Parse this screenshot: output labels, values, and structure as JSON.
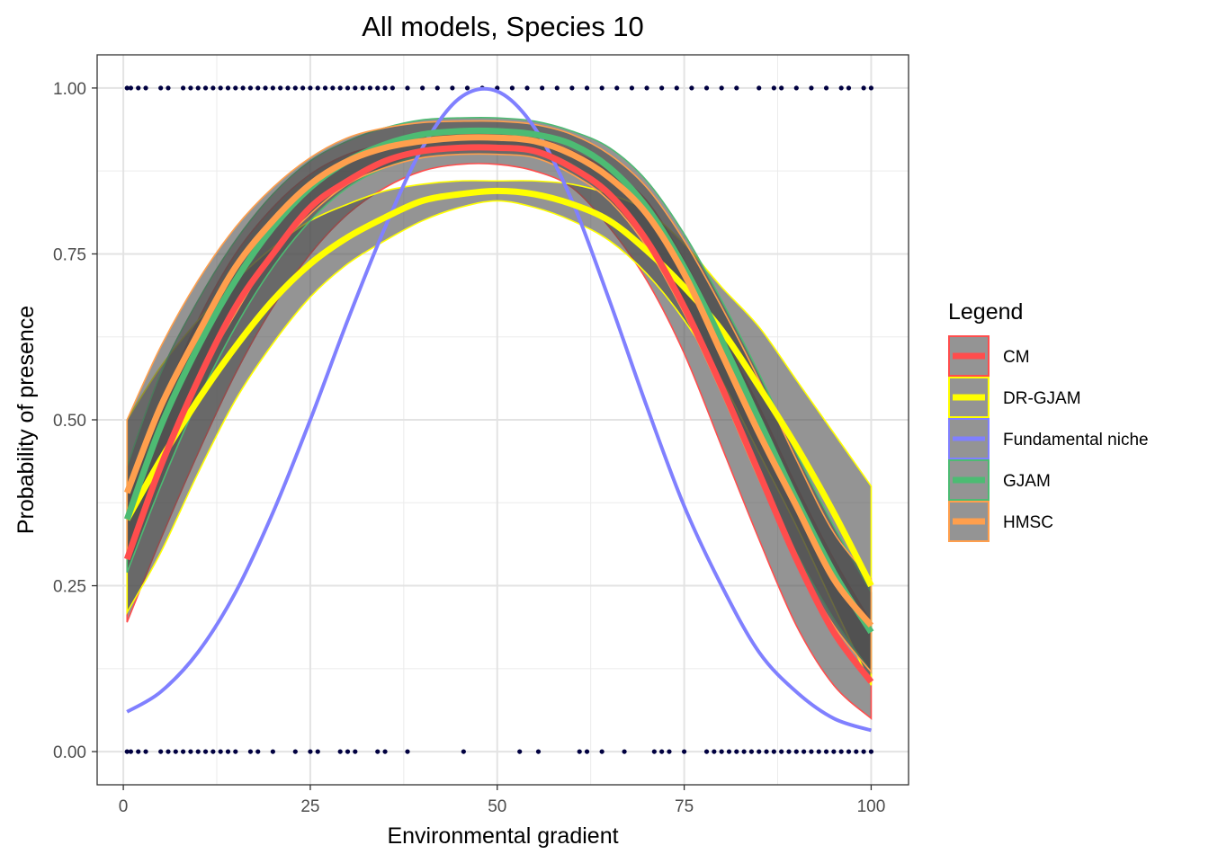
{
  "chart_data": {
    "type": "line",
    "title": "All models, Species 10",
    "xlabel": "Environmental gradient",
    "ylabel": "Probability of presence",
    "xlim": [
      -3.5,
      105
    ],
    "ylim": [
      -0.05,
      1.05
    ],
    "x_ticks": [
      0,
      25,
      50,
      75,
      100
    ],
    "x_tick_labels": [
      "0",
      "25",
      "50",
      "75",
      "100"
    ],
    "y_ticks": [
      0,
      0.25,
      0.5,
      0.75,
      1.0
    ],
    "y_tick_labels": [
      "0.00",
      "0.25",
      "0.50",
      "0.75",
      "1.00"
    ],
    "grid": true,
    "legend": {
      "title": "Legend",
      "position": "right",
      "items": [
        "CM",
        "DR-GJAM",
        "Fundamental niche",
        "GJAM",
        "HMSC"
      ]
    },
    "ribbon_color": "#4d4d4d",
    "x": [
      0.5,
      5,
      10,
      15,
      20,
      25,
      30,
      35,
      40,
      45,
      50,
      55,
      60,
      65,
      70,
      75,
      80,
      85,
      90,
      95,
      100
    ],
    "series": [
      {
        "name": "CM",
        "color": "#ff4d4d",
        "values": [
          0.29,
          0.43,
          0.56,
          0.67,
          0.75,
          0.82,
          0.86,
          0.89,
          0.905,
          0.91,
          0.91,
          0.905,
          0.88,
          0.84,
          0.77,
          0.67,
          0.55,
          0.42,
          0.29,
          0.18,
          0.105
        ],
        "lower": [
          0.195,
          0.32,
          0.45,
          0.57,
          0.67,
          0.75,
          0.81,
          0.85,
          0.875,
          0.885,
          0.885,
          0.875,
          0.85,
          0.79,
          0.71,
          0.6,
          0.46,
          0.32,
          0.19,
          0.1,
          0.05
        ],
        "upper": [
          0.39,
          0.52,
          0.65,
          0.75,
          0.82,
          0.87,
          0.9,
          0.915,
          0.925,
          0.93,
          0.93,
          0.925,
          0.905,
          0.875,
          0.83,
          0.74,
          0.63,
          0.52,
          0.4,
          0.29,
          0.195
        ]
      },
      {
        "name": "DR-GJAM",
        "color": "#ffff00",
        "values": [
          0.35,
          0.44,
          0.53,
          0.61,
          0.68,
          0.735,
          0.775,
          0.805,
          0.83,
          0.84,
          0.845,
          0.84,
          0.825,
          0.8,
          0.755,
          0.7,
          0.635,
          0.55,
          0.46,
          0.36,
          0.25
        ],
        "lower": [
          0.21,
          0.3,
          0.42,
          0.53,
          0.615,
          0.685,
          0.735,
          0.77,
          0.8,
          0.82,
          0.83,
          0.82,
          0.8,
          0.77,
          0.72,
          0.65,
          0.56,
          0.45,
          0.34,
          0.22,
          0.1
        ],
        "upper": [
          0.5,
          0.58,
          0.65,
          0.71,
          0.76,
          0.8,
          0.825,
          0.845,
          0.855,
          0.86,
          0.86,
          0.86,
          0.855,
          0.84,
          0.815,
          0.765,
          0.7,
          0.64,
          0.56,
          0.48,
          0.4
        ]
      },
      {
        "name": "Fundamental niche",
        "color": "#8080ff",
        "values": [
          0.06,
          0.09,
          0.15,
          0.24,
          0.36,
          0.5,
          0.65,
          0.79,
          0.91,
          0.985,
          0.995,
          0.94,
          0.83,
          0.68,
          0.52,
          0.37,
          0.25,
          0.15,
          0.09,
          0.05,
          0.032
        ]
      },
      {
        "name": "GJAM",
        "color": "#4dbb73",
        "values": [
          0.35,
          0.49,
          0.61,
          0.71,
          0.79,
          0.85,
          0.89,
          0.915,
          0.93,
          0.935,
          0.935,
          0.93,
          0.915,
          0.88,
          0.82,
          0.73,
          0.62,
          0.5,
          0.38,
          0.27,
          0.18
        ],
        "lower": [
          0.27,
          0.4,
          0.53,
          0.64,
          0.73,
          0.8,
          0.85,
          0.88,
          0.9,
          0.91,
          0.91,
          0.905,
          0.885,
          0.84,
          0.77,
          0.67,
          0.55,
          0.42,
          0.3,
          0.2,
          0.12
        ],
        "upper": [
          0.43,
          0.57,
          0.68,
          0.77,
          0.84,
          0.89,
          0.92,
          0.94,
          0.952,
          0.955,
          0.955,
          0.95,
          0.935,
          0.91,
          0.86,
          0.78,
          0.68,
          0.57,
          0.45,
          0.34,
          0.24
        ]
      },
      {
        "name": "HMSC",
        "color": "#ff9f4d",
        "values": [
          0.39,
          0.52,
          0.63,
          0.73,
          0.8,
          0.855,
          0.89,
          0.91,
          0.92,
          0.925,
          0.925,
          0.92,
          0.9,
          0.865,
          0.81,
          0.72,
          0.6,
          0.48,
          0.37,
          0.26,
          0.19
        ],
        "lower": [
          0.29,
          0.43,
          0.56,
          0.66,
          0.75,
          0.81,
          0.855,
          0.88,
          0.895,
          0.9,
          0.9,
          0.895,
          0.87,
          0.83,
          0.76,
          0.66,
          0.54,
          0.41,
          0.29,
          0.19,
          0.12
        ],
        "upper": [
          0.5,
          0.61,
          0.71,
          0.79,
          0.85,
          0.895,
          0.925,
          0.94,
          0.948,
          0.95,
          0.95,
          0.945,
          0.93,
          0.9,
          0.85,
          0.77,
          0.67,
          0.56,
          0.44,
          0.33,
          0.26
        ]
      }
    ],
    "observations": {
      "color": "#000040",
      "presence_x": [
        0.5,
        1,
        2,
        3,
        5,
        6,
        8,
        9,
        10,
        11,
        12,
        13,
        14,
        15,
        16,
        17,
        18,
        19,
        20,
        21,
        22,
        23,
        24,
        25,
        26,
        27,
        28,
        29,
        30,
        31,
        32,
        33,
        34,
        35,
        36,
        38,
        40,
        42,
        44,
        46,
        48,
        50,
        52,
        54,
        56,
        58,
        60,
        62,
        64,
        66,
        68,
        70,
        72,
        74,
        76,
        78,
        80,
        82,
        85,
        87,
        88,
        90,
        92,
        94,
        96,
        97,
        99,
        100
      ],
      "absence_x": [
        0.5,
        1,
        2,
        3,
        5,
        6,
        7,
        8,
        9,
        10,
        11,
        12,
        13,
        14,
        15,
        17,
        18,
        20,
        23,
        25,
        26,
        29,
        30,
        31,
        34,
        35,
        38,
        45.5,
        53,
        55.5,
        61,
        62,
        64,
        67,
        71,
        72,
        73,
        75,
        78,
        79,
        80,
        81,
        82,
        83,
        84,
        85,
        86,
        87,
        88,
        89,
        90,
        91,
        92,
        93,
        94,
        95,
        96,
        97,
        98,
        99,
        100
      ]
    }
  }
}
